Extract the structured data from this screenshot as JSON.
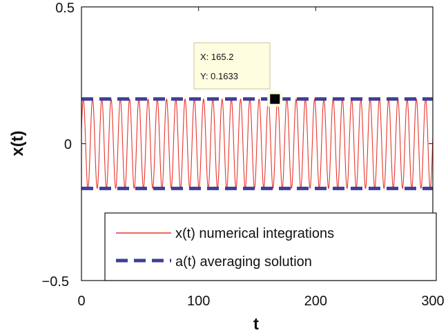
{
  "chart_data": {
    "type": "line",
    "title": "",
    "xlabel": "t",
    "ylabel": "x(t)",
    "xlim": [
      0,
      300
    ],
    "ylim": [
      -0.5,
      0.5
    ],
    "xticks": [
      0,
      100,
      200,
      300
    ],
    "xtick_labels": [
      "0",
      "100",
      "200",
      "300"
    ],
    "yticks": [
      0.5,
      0,
      -0.5
    ],
    "ytick_labels": [
      "0.5",
      "0",
      "−0.5"
    ],
    "grid": false,
    "legend_position": "lower-right",
    "series": [
      {
        "name": "x(t) numerical integrations",
        "style": "solid",
        "color": "#e8332a",
        "form": "sinusoid",
        "amplitude": 0.1633,
        "period": 7.9,
        "t_range": [
          0,
          300
        ]
      },
      {
        "name": "a(t) averaging solution",
        "style": "dashed",
        "color": "#3f3f99",
        "form": "envelope",
        "upper": 0.1633,
        "lower": -0.1633,
        "t_range": [
          0,
          300
        ]
      }
    ],
    "datatip": {
      "x_label": "X: 165.2",
      "y_label": "Y: 0.1633",
      "x": 165.2,
      "y": 0.1633
    }
  }
}
